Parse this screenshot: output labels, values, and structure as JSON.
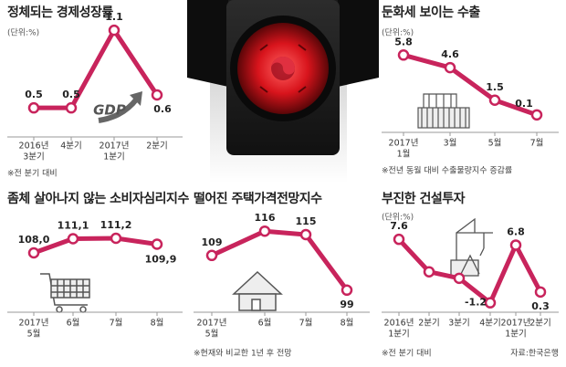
{
  "chart_data": [
    {
      "type": "line",
      "title": "정체되는 경제성장률",
      "unit": "(단위:%)",
      "categories": [
        [
          "2016년",
          "3분기"
        ],
        [
          "4분기"
        ],
        [
          "2017년",
          "1분기"
        ],
        [
          "2분기"
        ]
      ],
      "values": [
        0.5,
        0.5,
        1.1,
        0.6
      ],
      "ylim": [
        0,
        1.2
      ],
      "color": "#c8245c",
      "icon_text": "GDP",
      "footnote": "※전 분기 대비"
    },
    {
      "type": "line",
      "title": "둔화세 보이는 수출",
      "unit": "(단위:%)",
      "categories": [
        [
          "2017년",
          "1월"
        ],
        [
          "3월"
        ],
        [
          "5월"
        ],
        [
          "7월"
        ]
      ],
      "values": [
        5.8,
        4.6,
        1.5,
        0.1
      ],
      "ylim": [
        0,
        6
      ],
      "color": "#c8245c",
      "footnote": "※전년 동월 대비 수출물량지수 증감률"
    },
    {
      "type": "line",
      "title": "좀체 살아나지 않는 소비자심리지수",
      "categories": [
        [
          "2017년",
          "5월"
        ],
        [
          "6월"
        ],
        [
          "7월"
        ],
        [
          "8월"
        ]
      ],
      "values": [
        108.0,
        111.1,
        111.2,
        109.9
      ],
      "value_labels": [
        "108,0",
        "111,1",
        "111,2",
        "109,9"
      ],
      "ylim": [
        105,
        112
      ],
      "color": "#c8245c"
    },
    {
      "type": "line",
      "title": "떨어진 주택가격전망지수",
      "categories": [
        [
          "2017년",
          "5월"
        ],
        [
          "6월"
        ],
        [
          "7월"
        ],
        [
          "8월"
        ]
      ],
      "values": [
        109,
        116,
        115,
        99
      ],
      "ylim": [
        95,
        120
      ],
      "color": "#c8245c",
      "footnote": "※현재와 비교한 1년 후 전망"
    },
    {
      "type": "line",
      "title": "부진한 건설투자",
      "unit": "(단위:%)",
      "categories": [
        [
          "2016년",
          "1분기"
        ],
        [
          "2분기"
        ],
        [
          "3분기"
        ],
        [
          "4분기"
        ],
        [
          "2017년",
          "1분기"
        ],
        [
          "2분기"
        ]
      ],
      "values": [
        7.6,
        3.1,
        2.2,
        -1.2,
        6.8,
        0.3
      ],
      "value_labels": [
        "7.6",
        null,
        null,
        "-1.2",
        "6.8",
        "0.3"
      ],
      "ylim": [
        -2,
        8
      ],
      "color": "#c8245c",
      "footnote": "※전 분기 대비"
    }
  ],
  "source": "자료:한국은행"
}
